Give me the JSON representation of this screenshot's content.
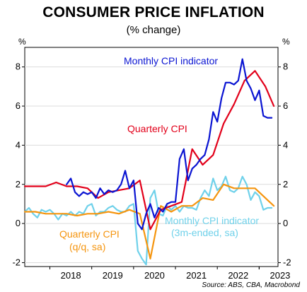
{
  "header": {
    "title": "CONSUMER PRICE INFLATION",
    "subtitle": "(% change)"
  },
  "source": "Source: ABS, CBA, Macrobond",
  "chart_data": {
    "type": "line",
    "title": "CONSUMER PRICE INFLATION",
    "subtitle": "(% change)",
    "y_unit_left": "%",
    "y_unit_right": "%",
    "ylim": [
      -2.2,
      9.0
    ],
    "xlim": [
      2017.4,
      2023.45
    ],
    "yticks": [
      -2,
      0,
      2,
      4,
      6,
      8
    ],
    "xticks": [
      2018,
      2019,
      2020,
      2021,
      2022,
      2023
    ],
    "grid": "horizontal",
    "legend": "inline labels",
    "series": [
      {
        "name": "Monthly CPI indicator",
        "color": "#0a14d2",
        "label_text": "Monthly CPI indicator",
        "x": [
          2018.4,
          2018.5,
          2018.6,
          2018.7,
          2018.8,
          2018.9,
          2019.0,
          2019.1,
          2019.2,
          2019.3,
          2019.4,
          2019.5,
          2019.6,
          2019.7,
          2019.8,
          2019.9,
          2020.0,
          2020.1,
          2020.2,
          2020.3,
          2020.4,
          2020.5,
          2020.6,
          2020.7,
          2020.8,
          2020.9,
          2021.0,
          2021.1,
          2021.2,
          2021.3,
          2021.4,
          2021.5,
          2021.6,
          2021.7,
          2021.8,
          2021.9,
          2022.0,
          2022.1,
          2022.2,
          2022.3,
          2022.4,
          2022.5,
          2022.6,
          2022.7,
          2022.8,
          2022.9,
          2023.0,
          2023.1,
          2023.2,
          2023.3
        ],
        "values": [
          2.0,
          2.3,
          1.6,
          1.4,
          1.6,
          1.5,
          1.6,
          1.3,
          1.8,
          1.5,
          1.7,
          1.6,
          1.7,
          2.0,
          2.7,
          1.8,
          2.2,
          0.0,
          -0.3,
          0.5,
          1.0,
          0.3,
          0.8,
          0.6,
          1.0,
          1.1,
          1.1,
          3.3,
          3.8,
          2.2,
          2.8,
          3.0,
          3.3,
          3.5,
          4.3,
          5.7,
          5.2,
          6.4,
          7.2,
          7.2,
          7.1,
          7.3,
          8.4,
          7.3,
          6.9,
          6.3,
          6.8,
          5.5,
          5.4,
          5.4
        ]
      },
      {
        "name": "Quarterly CPI",
        "color": "#e2001a",
        "label_text": "Quarterly CPI",
        "x": [
          2017.4,
          2017.65,
          2017.9,
          2018.15,
          2018.4,
          2018.65,
          2018.9,
          2019.15,
          2019.4,
          2019.65,
          2019.9,
          2020.15,
          2020.4,
          2020.65,
          2020.9,
          2021.15,
          2021.4,
          2021.65,
          2021.9,
          2022.15,
          2022.4,
          2022.65,
          2022.9,
          2023.15,
          2023.35
        ],
        "values": [
          1.9,
          1.9,
          1.9,
          2.1,
          1.9,
          1.9,
          1.8,
          1.3,
          1.6,
          1.7,
          1.8,
          2.2,
          -0.3,
          0.7,
          0.9,
          1.1,
          3.8,
          3.0,
          3.5,
          5.1,
          6.1,
          7.3,
          7.8,
          7.0,
          6.0
        ]
      },
      {
        "name": "Monthly CPI indicator (3m-ended, sa)",
        "color": "#6fd1ea",
        "label_text": "Monthly CPI indicator",
        "label_text_2": "(3m-ended, sa)",
        "x": [
          2017.4,
          2017.5,
          2017.6,
          2017.7,
          2017.8,
          2017.9,
          2018.0,
          2018.1,
          2018.2,
          2018.3,
          2018.4,
          2018.5,
          2018.6,
          2018.7,
          2018.8,
          2018.9,
          2019.0,
          2019.1,
          2019.2,
          2019.3,
          2019.4,
          2019.5,
          2019.6,
          2019.7,
          2019.8,
          2019.9,
          2020.0,
          2020.1,
          2020.2,
          2020.3,
          2020.4,
          2020.5,
          2020.6,
          2020.7,
          2020.8,
          2020.9,
          2021.0,
          2021.1,
          2021.2,
          2021.3,
          2021.4,
          2021.5,
          2021.6,
          2021.7,
          2021.8,
          2021.9,
          2022.0,
          2022.1,
          2022.2,
          2022.3,
          2022.4,
          2022.5,
          2022.6,
          2022.7,
          2022.8,
          2022.9,
          2023.0,
          2023.1,
          2023.2,
          2023.3
        ],
        "values": [
          0.6,
          0.8,
          0.5,
          0.3,
          0.7,
          0.6,
          0.7,
          0.5,
          0.2,
          0.5,
          0.4,
          0.6,
          0.4,
          0.6,
          0.5,
          0.9,
          1.0,
          0.4,
          0.6,
          0.6,
          0.8,
          0.9,
          0.7,
          0.6,
          0.6,
          0.9,
          1.0,
          -1.4,
          -1.8,
          -2.1,
          1.3,
          1.7,
          0.5,
          0.4,
          0.9,
          0.7,
          0.9,
          0.6,
          0.9,
          0.8,
          0.8,
          0.7,
          1.3,
          1.7,
          1.4,
          2.3,
          1.7,
          1.9,
          2.4,
          1.7,
          1.6,
          1.8,
          2.4,
          2.0,
          1.2,
          1.6,
          1.4,
          0.7,
          0.8,
          0.8
        ]
      },
      {
        "name": "Quarterly CPI (q/q, sa)",
        "color": "#f5950f",
        "label_text": "Quarterly CPI",
        "label_text_2": "(q/q, sa)",
        "x": [
          2017.4,
          2017.65,
          2017.9,
          2018.15,
          2018.4,
          2018.65,
          2018.9,
          2019.15,
          2019.4,
          2019.65,
          2019.9,
          2020.15,
          2020.4,
          2020.65,
          2020.9,
          2021.15,
          2021.4,
          2021.65,
          2021.9,
          2022.15,
          2022.4,
          2022.65,
          2022.9,
          2023.15,
          2023.35
        ],
        "values": [
          0.6,
          0.6,
          0.5,
          0.5,
          0.5,
          0.4,
          0.5,
          0.5,
          0.6,
          0.5,
          0.7,
          0.5,
          -1.8,
          0.9,
          0.6,
          0.9,
          0.9,
          1.3,
          1.2,
          2.0,
          1.8,
          1.8,
          1.8,
          1.3,
          0.9
        ]
      }
    ]
  }
}
